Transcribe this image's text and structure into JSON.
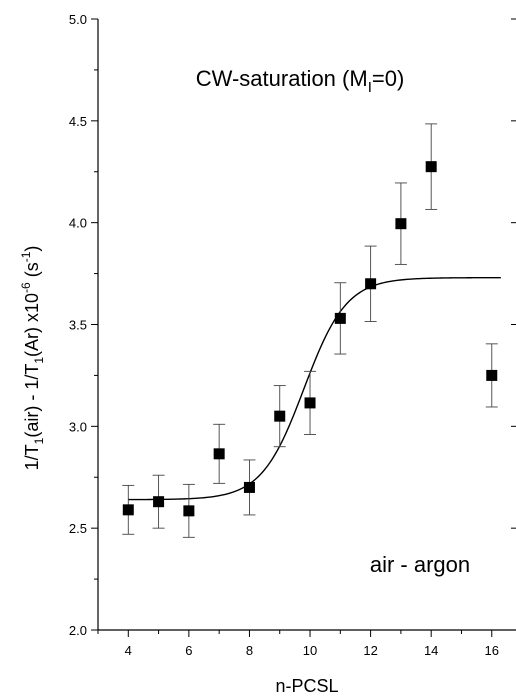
{
  "chart_data": {
    "type": "scatter",
    "xlabel": "n-PCSL",
    "ylabel": {
      "parts": [
        "1/T",
        "1",
        "(air) - 1/T",
        "1",
        "(Ar) x10",
        "-6",
        " (s",
        "-1",
        ")"
      ]
    },
    "xlim": [
      3,
      16.8
    ],
    "ylim": [
      2.0,
      5.0
    ],
    "x_ticks": [
      "4",
      "6",
      "8",
      "10",
      "12",
      "14",
      "16"
    ],
    "y_ticks": [
      "2.0",
      "2.5",
      "3.0",
      "3.5",
      "4.0",
      "4.5",
      "5.0"
    ],
    "annotations": {
      "title_parts": [
        "CW-saturation  (M",
        "I",
        "=0)"
      ],
      "label": "air - argon"
    },
    "series": [
      {
        "marker": "square",
        "points": [
          {
            "x": 4,
            "y": 2.59,
            "err": 0.12
          },
          {
            "x": 5,
            "y": 2.63,
            "err": 0.13
          },
          {
            "x": 6,
            "y": 2.585,
            "err": 0.13
          },
          {
            "x": 7,
            "y": 2.865,
            "err": 0.145
          },
          {
            "x": 8,
            "y": 2.7,
            "err": 0.135
          },
          {
            "x": 9,
            "y": 3.05,
            "err": 0.15
          },
          {
            "x": 10,
            "y": 3.115,
            "err": 0.155
          },
          {
            "x": 11,
            "y": 3.53,
            "err": 0.175
          },
          {
            "x": 12,
            "y": 3.7,
            "err": 0.185
          },
          {
            "x": 13,
            "y": 3.995,
            "err": 0.2
          },
          {
            "x": 14,
            "y": 4.275,
            "err": 0.21
          },
          {
            "x": 16,
            "y": 3.25,
            "err": 0.155
          }
        ]
      }
    ],
    "fit": {
      "type": "sigmoid",
      "base": 2.64,
      "top": 3.73,
      "x0": 9.8,
      "width": 0.7,
      "x_range": [
        4,
        16.3
      ]
    }
  }
}
